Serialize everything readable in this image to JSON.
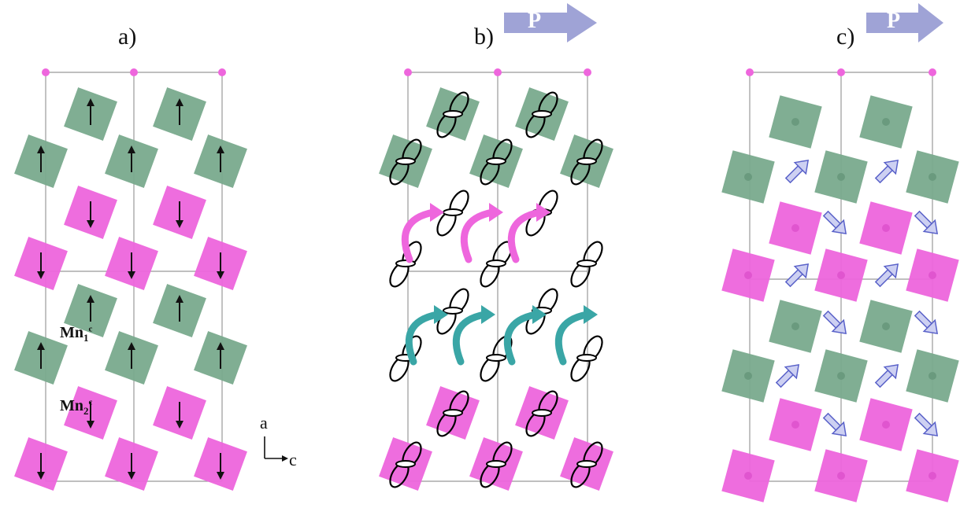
{
  "panels": {
    "a": {
      "label": "a)"
    },
    "b": {
      "label": "b)",
      "polarization_label": "P"
    },
    "c": {
      "label": "c)",
      "polarization_label": "P"
    }
  },
  "labels": {
    "mn1": {
      "main": "Mn",
      "sub": "1",
      "sup": "c"
    },
    "mn2": {
      "main": "Mn",
      "sub": "2",
      "sup": "c"
    }
  },
  "axes": {
    "vertical": "a",
    "horizontal": "c"
  },
  "colors": {
    "green_octahedron": "#7aaa8e",
    "magenta_octahedron": "#ee66dd",
    "polarization_arrow": "#9fa3d6",
    "pink_curved_arrow": "#ee66dd",
    "teal_curved_arrow": "#3aa6a6",
    "spin_arrow_c": "#5a62c9"
  }
}
